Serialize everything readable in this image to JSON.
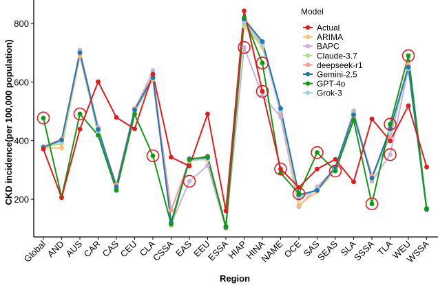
{
  "chart_data": {
    "type": "line",
    "title": "",
    "xlabel": "Region",
    "ylabel": "CKD incidence(per 100,000 population)",
    "ylim": [
      95,
      880
    ],
    "yticks": [
      200,
      400,
      600,
      800
    ],
    "grid": false,
    "legend": {
      "title": "Model",
      "placement": "top-right"
    },
    "categories": [
      "Global",
      "AND",
      "AUS",
      "CAR",
      "CAS",
      "CEU",
      "CLA",
      "CSSA",
      "EAS",
      "EEU",
      "ESSA",
      "HIAP",
      "HINA",
      "NAME",
      "OCE",
      "SAS",
      "SEAS",
      "SLA",
      "SSSA",
      "TLA",
      "WEU",
      "WSSA"
    ],
    "series": [
      {
        "name": "Actual",
        "color": "#E41A1C",
        "values": [
          371,
          205,
          439,
          601,
          479,
          440,
          627,
          343,
          313,
          491,
          160,
          843,
          568,
          303,
          240,
          303,
          336,
          259,
          474,
          399,
          519,
          310
        ]
      },
      {
        "name": "ARIMA",
        "color": "#FDBF6F",
        "values": [
          375,
          375,
          688,
          425,
          235,
          500,
          617,
          110,
          336,
          334,
          100,
          790,
          720,
          500,
          180,
          226,
          300,
          486,
          268,
          430,
          660,
          165
        ]
      },
      {
        "name": "BAPC",
        "color": "#CAB2D6",
        "values": [
          380,
          400,
          709,
          446,
          240,
          505,
          639,
          115,
          261,
          315,
          100,
          718,
          555,
          480,
          174,
          242,
          305,
          502,
          261,
          352,
          645,
          163
        ]
      },
      {
        "name": "Claude-3.7",
        "color": "#B2DF8A",
        "values": [
          378,
          390,
          700,
          420,
          245,
          495,
          608,
          118,
          330,
          340,
          104,
          792,
          725,
          505,
          200,
          235,
          302,
          490,
          275,
          440,
          650,
          168
        ]
      },
      {
        "name": "deepseek-r1",
        "color": "#FB9A99",
        "values": [
          380,
          405,
          698,
          435,
          250,
          510,
          620,
          162,
          332,
          348,
          102,
          810,
          730,
          495,
          210,
          232,
          308,
          495,
          280,
          411,
          655,
          166
        ]
      },
      {
        "name": "Gemini-2.5",
        "color": "#1F78B4",
        "values": [
          377,
          402,
          700,
          438,
          242,
          505,
          615,
          120,
          338,
          342,
          104,
          815,
          738,
          510,
          215,
          230,
          310,
          488,
          272,
          440,
          650,
          165
        ]
      },
      {
        "name": "GPT-4o",
        "color": "#119A11",
        "values": [
          477,
          207,
          491,
          418,
          230,
          490,
          348,
          115,
          335,
          345,
          107,
          820,
          665,
          289,
          219,
          359,
          296,
          470,
          184,
          456,
          690,
          168
        ]
      },
      {
        "name": "Grok-3",
        "color": "#A6CEE3",
        "values": [
          379,
          398,
          702,
          432,
          240,
          500,
          612,
          118,
          334,
          338,
          104,
          805,
          728,
          500,
          205,
          234,
          305,
          492,
          270,
          425,
          645,
          165
        ]
      }
    ],
    "highlighted_points": [
      {
        "series": "GPT-4o",
        "category": "Global"
      },
      {
        "series": "GPT-4o",
        "category": "AUS"
      },
      {
        "series": "GPT-4o",
        "category": "CLA"
      },
      {
        "series": "BAPC",
        "category": "EAS"
      },
      {
        "series": "BAPC",
        "category": "HIAP"
      },
      {
        "series": "GPT-4o",
        "category": "HINA"
      },
      {
        "series": "Actual",
        "category": "HINA"
      },
      {
        "series": "Actual",
        "category": "NAME"
      },
      {
        "series": "GPT-4o",
        "category": "OCE"
      },
      {
        "series": "GPT-4o",
        "category": "SAS"
      },
      {
        "series": "GPT-4o",
        "category": "SEAS"
      },
      {
        "series": "GPT-4o",
        "category": "SSSA"
      },
      {
        "series": "GPT-4o",
        "category": "TLA"
      },
      {
        "series": "BAPC",
        "category": "TLA"
      },
      {
        "series": "GPT-4o",
        "category": "WEU"
      }
    ],
    "highlight_color": "#E41A1C"
  }
}
